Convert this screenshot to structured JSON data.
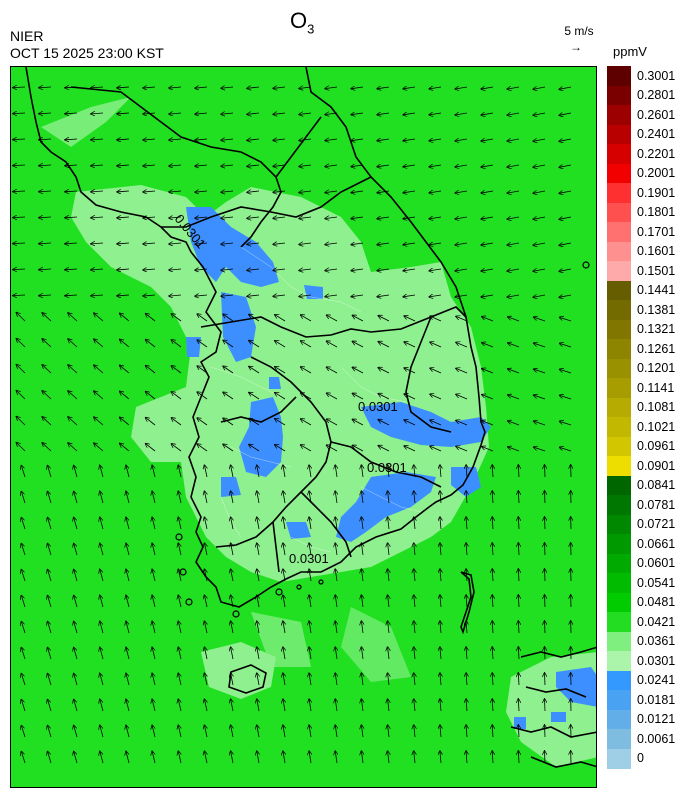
{
  "header": {
    "org": "NIER",
    "timestamp": "OCT 15 2025 23:00 KST",
    "title_main": "O",
    "title_sub": "3",
    "ref_speed": "5 m/s",
    "ref_arrow": "→",
    "unit": "ppmV"
  },
  "colorbar": {
    "labels": [
      "0.3001",
      "0.2801",
      "0.2601",
      "0.2401",
      "0.2201",
      "0.2001",
      "0.1901",
      "0.1801",
      "0.1701",
      "0.1601",
      "0.1501",
      "0.1441",
      "0.1381",
      "0.1321",
      "0.1261",
      "0.1201",
      "0.1141",
      "0.1081",
      "0.1021",
      "0.0961",
      "0.0901",
      "0.0841",
      "0.0781",
      "0.0721",
      "0.0661",
      "0.0601",
      "0.0541",
      "0.0481",
      "0.0421",
      "0.0361",
      "0.0301",
      "0.0241",
      "0.0181",
      "0.0121",
      "0.0061",
      "0"
    ],
    "colors": [
      "#5e0000",
      "#7a0000",
      "#9c0000",
      "#b80000",
      "#d60000",
      "#f20000",
      "#ff3030",
      "#ff5050",
      "#ff7070",
      "#ff9090",
      "#ffaaaa",
      "#665c00",
      "#736a00",
      "#817700",
      "#8d8400",
      "#9a9100",
      "#a89d00",
      "#b6ab00",
      "#c3b800",
      "#d2c600",
      "#eede00",
      "#006600",
      "#007700",
      "#008800",
      "#009900",
      "#00aa00",
      "#00bb00",
      "#00cc00",
      "#22dd22",
      "#7ff07f",
      "#aaf5aa",
      "#3399ff",
      "#4aa3f2",
      "#62aee8",
      "#7fbde0",
      "#9fcfe6"
    ]
  },
  "map": {
    "contour_labels": [
      "0.0301",
      "0.0301",
      "0.0301",
      "0.0301"
    ],
    "colors": {
      "background": "#21e021",
      "light_green": "#8ef08e",
      "blue": "#3d8fff",
      "border": "#000000"
    }
  }
}
